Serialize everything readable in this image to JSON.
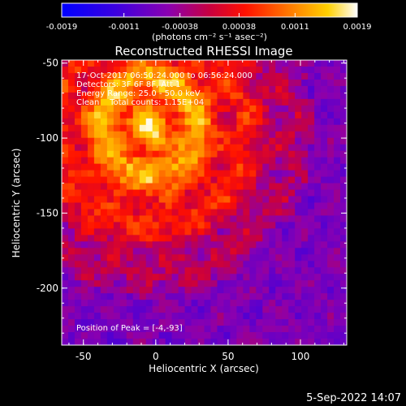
{
  "colorbar": {
    "tick_labels": [
      "-0.0019",
      "-0.0011",
      "-0.00038",
      "0.00038",
      "0.0011",
      "0.0019"
    ],
    "tick_values": [
      -0.0019,
      -0.0011,
      -0.00038,
      0.00038,
      0.0011,
      0.0019
    ],
    "range": [
      -0.0019,
      0.0019
    ],
    "units_label": "(photons cm⁻² s⁻¹ asec⁻²)",
    "colors": [
      "#0000ff",
      "#5a00c8",
      "#a000a0",
      "#ff0000",
      "#ff7a00",
      "#ffd200",
      "#ffffff"
    ]
  },
  "chart_data": {
    "type": "heatmap",
    "title": "Reconstructed RHESSI Image",
    "xlabel": "Heliocentric X (arcsec)",
    "ylabel": "Heliocentric Y (arcsec)",
    "xlim": [
      -65,
      132
    ],
    "ylim": [
      -238,
      -48
    ],
    "x_ticks": [
      -50,
      0,
      50,
      100
    ],
    "y_ticks": [
      -50,
      -100,
      -150,
      -200
    ],
    "annotations": [
      "17-Oct-2017 06:50:24.000 to 06:56:24.000",
      "Detectors: 3F 6F 8F, Att 1",
      "Energy Range: 25.0 - 50.0 keV",
      "Clean    Total counts: 1.15E+04"
    ],
    "peak_label": "Position of Peak = [-4,-93]",
    "peak": [
      -4,
      -93
    ]
  },
  "footer": {
    "date": "5-Sep-2022 14:07"
  }
}
